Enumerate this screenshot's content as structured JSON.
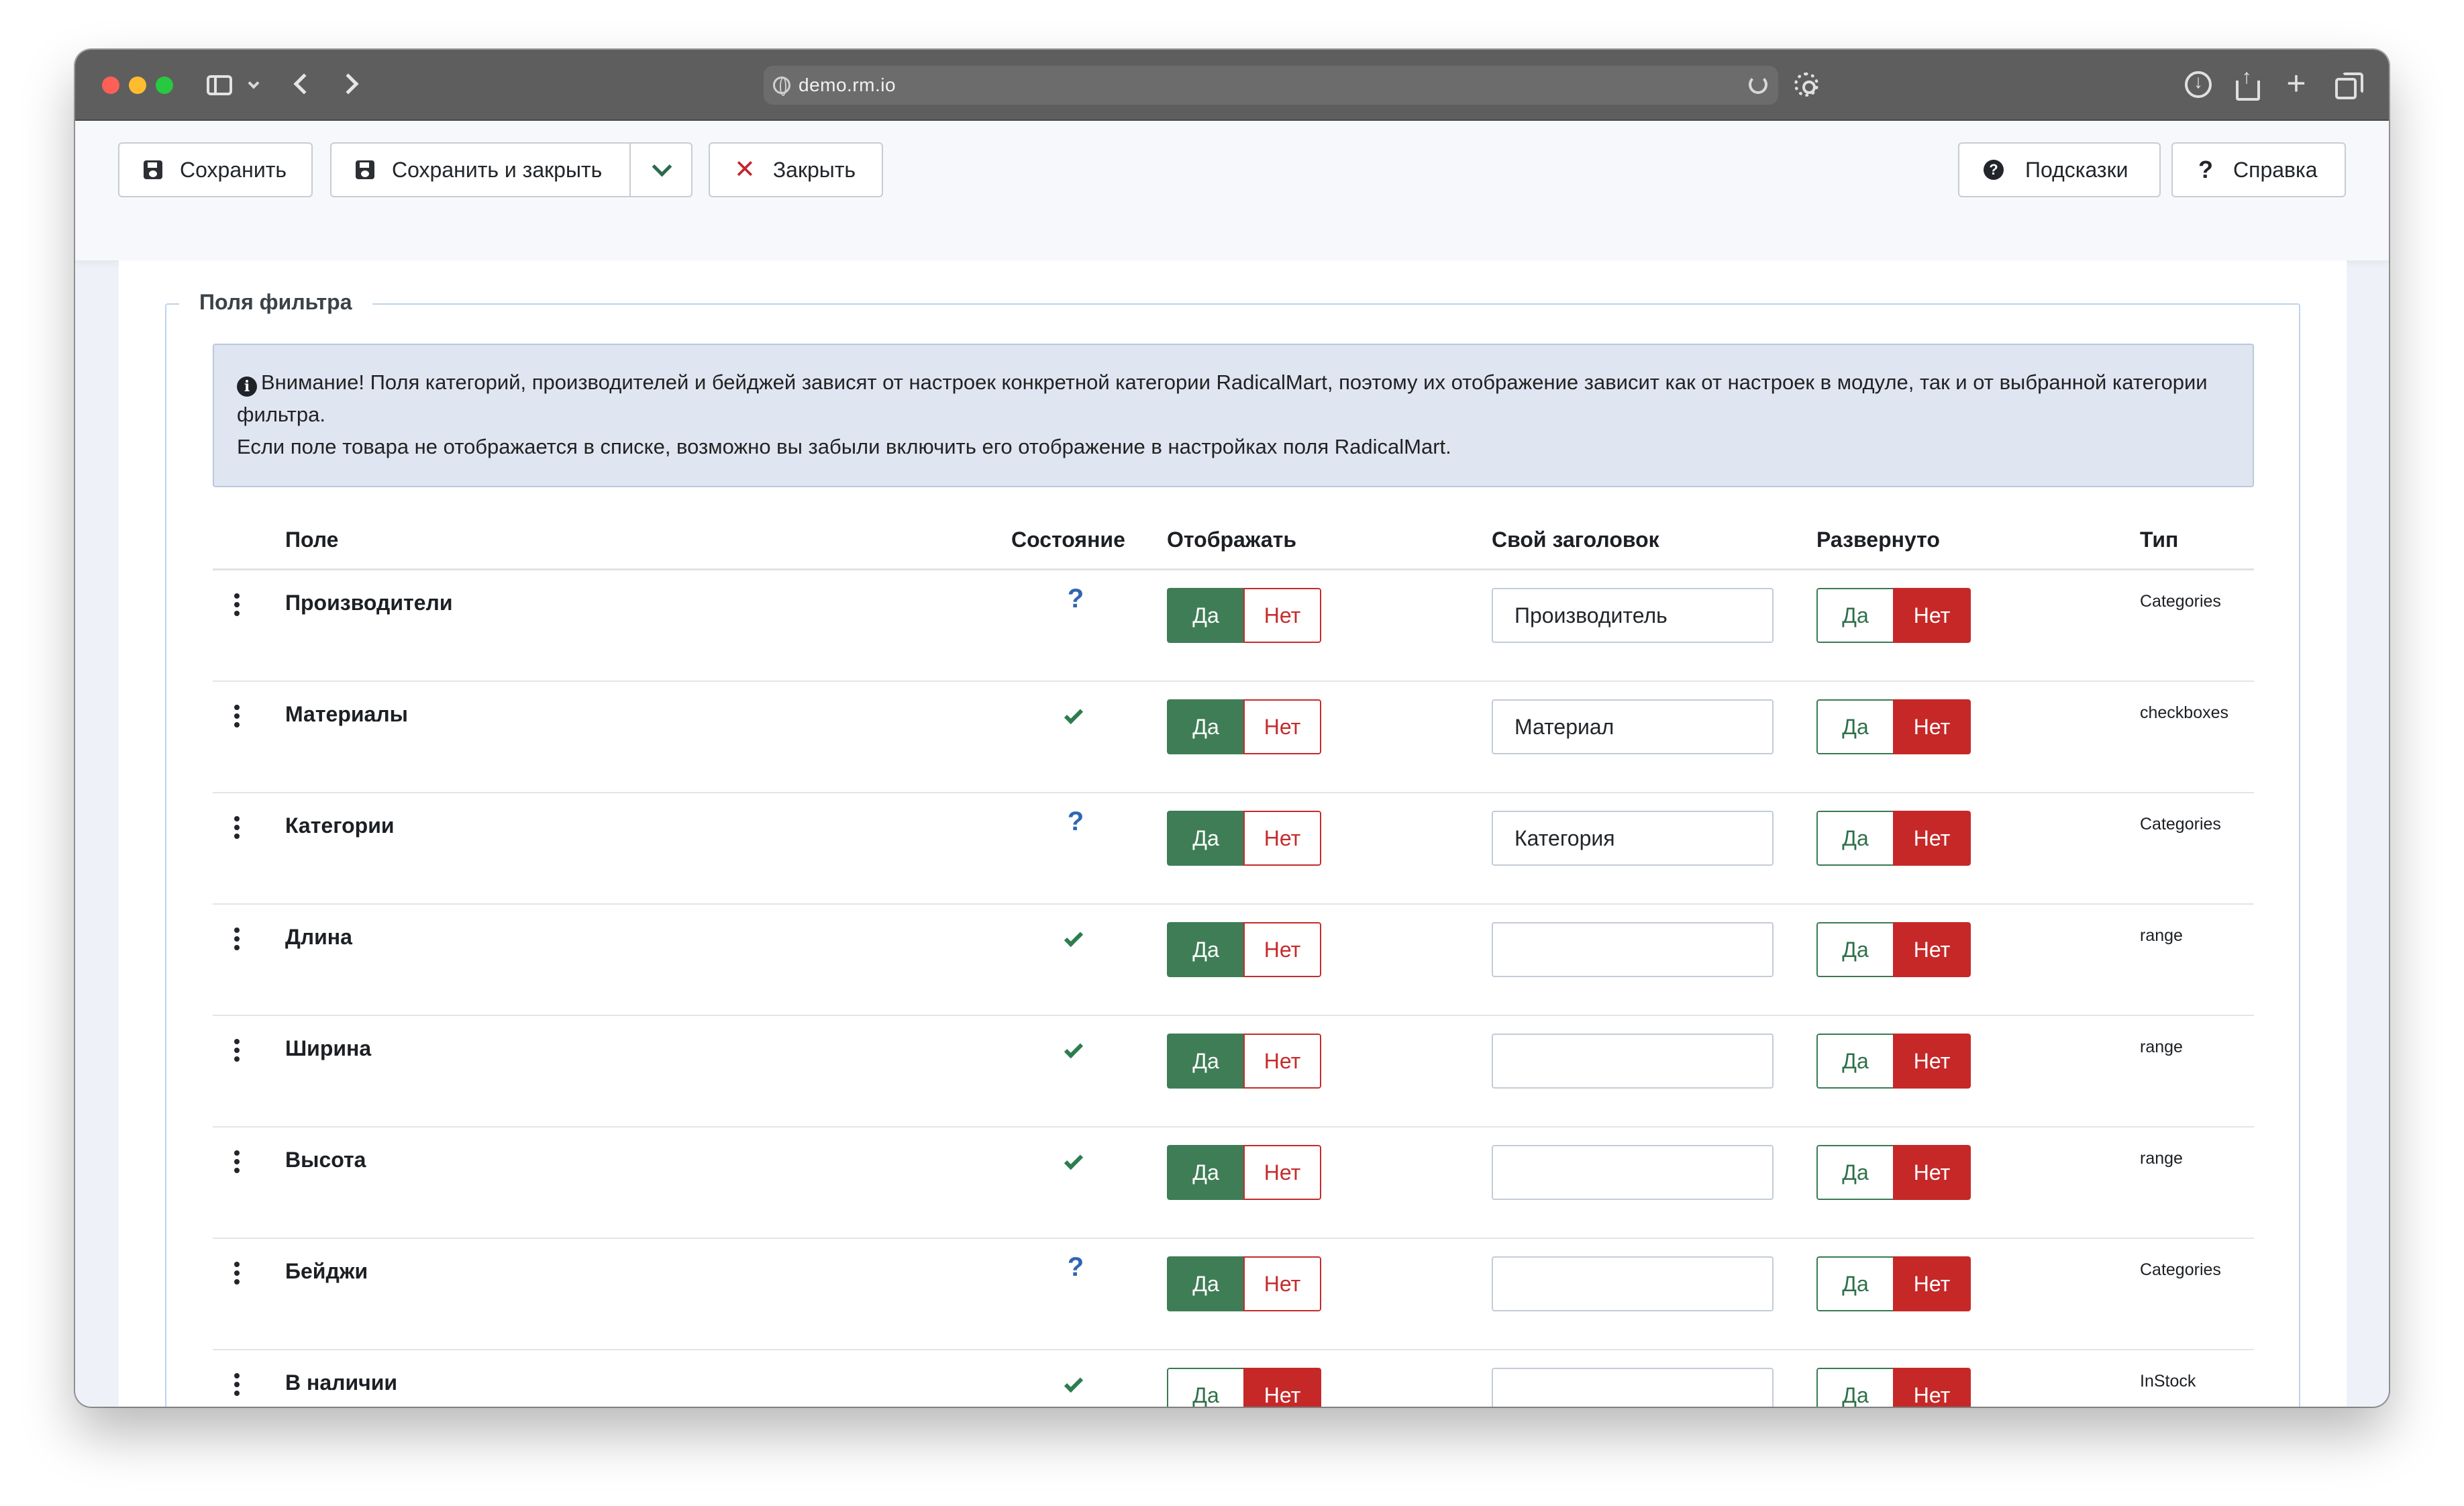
{
  "browser": {
    "url": "demo.rm.io"
  },
  "toolbar": {
    "save": "Сохранить",
    "save_close": "Сохранить и закрыть",
    "close": "Закрыть",
    "hints": "Подсказки",
    "help": "Справка"
  },
  "fieldset": {
    "legend": "Поля фильтра",
    "alert_line1": "Внимание! Поля категорий, производителей и бейджей зависят от настроек конкретной категории RadicalMart, поэтому их отображение зависит как от настроек в модуле, так и от выбранной категории фильтра.",
    "alert_line2": "Если поле товара не отображается в списке, возможно вы забыли включить его отображение в настройках поля RadicalMart."
  },
  "table": {
    "headers": {
      "field": "Поле",
      "state": "Состояние",
      "display": "Отображать",
      "custom_title": "Свой заголовок",
      "expanded": "Развернуто",
      "type": "Тип"
    },
    "yes_label": "Да",
    "no_label": "Нет",
    "rows": [
      {
        "name": "Производители",
        "state": "question",
        "display": "yes",
        "title": "Производитель",
        "expanded": "no",
        "type": "Categories"
      },
      {
        "name": "Материалы",
        "state": "check",
        "display": "yes",
        "title": "Материал",
        "expanded": "no",
        "type": "checkboxes"
      },
      {
        "name": "Категории",
        "state": "question",
        "display": "yes",
        "title": "Категория",
        "expanded": "no",
        "type": "Categories"
      },
      {
        "name": "Длина",
        "state": "check",
        "display": "yes",
        "title": "",
        "expanded": "no",
        "type": "range"
      },
      {
        "name": "Ширина",
        "state": "check",
        "display": "yes",
        "title": "",
        "expanded": "no",
        "type": "range"
      },
      {
        "name": "Высота",
        "state": "check",
        "display": "yes",
        "title": "",
        "expanded": "no",
        "type": "range"
      },
      {
        "name": "Бейджи",
        "state": "question",
        "display": "yes",
        "title": "",
        "expanded": "no",
        "type": "Categories"
      },
      {
        "name": "В наличии",
        "state": "check",
        "display": "no",
        "title": "",
        "expanded": "no",
        "type": "InStock"
      }
    ]
  },
  "colors": {
    "yes_active": "#3f7d57",
    "no_active": "#c62828",
    "question": "#2f66b3",
    "check": "#2e7d4f",
    "alert_bg": "#dfe6f1"
  }
}
